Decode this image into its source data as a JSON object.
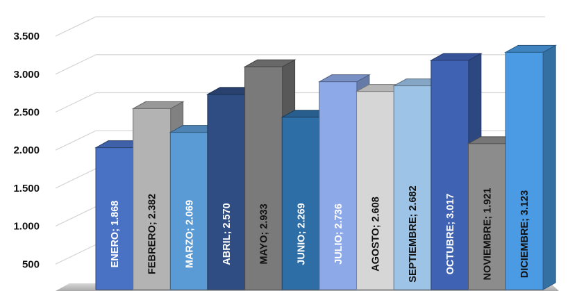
{
  "chart_data": {
    "type": "bar",
    "style": "3d-column",
    "categories": [
      "ENERO",
      "FEBRERO",
      "MARZO",
      "ABRIL",
      "MAYO",
      "JUNIO",
      "JULIO",
      "AGOSTO",
      "SEPTIEMBRE",
      "OCTUBRE",
      "NOVIEMBRE",
      "DICIEMBRE"
    ],
    "values": [
      1868,
      2382,
      2069,
      2570,
      2933,
      2269,
      2736,
      2608,
      2682,
      3017,
      1921,
      3123
    ],
    "data_labels": [
      "ENERO; 1.868",
      "FEBRERO; 2.382",
      "MARZO; 2.069",
      "ABRIL; 2.570",
      "MAYO; 2.933",
      "JUNIO; 2.269",
      "JULIO; 2.736",
      "AGOSTO; 2.608",
      "SEPTIEMBRE; 2.682",
      "OCTUBRE; 3.017",
      "NOVIEMBRE; 1.921",
      "DICIEMBRE; 3.123"
    ],
    "bar_colors": [
      "#4a72c4",
      "#b3b3b3",
      "#5b9bd5",
      "#2f4d82",
      "#7a7a7a",
      "#2e6ea6",
      "#8ea9e8",
      "#d6d6d6",
      "#9dc3e6",
      "#3f62b3",
      "#8c8c8c",
      "#4a9be3"
    ],
    "label_colors": [
      "#ffffff",
      "#111111",
      "#ffffff",
      "#ffffff",
      "#111111",
      "#ffffff",
      "#ffffff",
      "#111111",
      "#111111",
      "#ffffff",
      "#111111",
      "#111111"
    ],
    "y_ticks": [
      "500",
      "1.000",
      "1.500",
      "2.000",
      "2.500",
      "3.000",
      "3.500"
    ],
    "y_tick_values": [
      500,
      1000,
      1500,
      2000,
      2500,
      3000,
      3500
    ],
    "ylim": [
      0,
      3500
    ],
    "grid": true,
    "legend": "none",
    "title": "",
    "xlabel": "",
    "ylabel": ""
  }
}
